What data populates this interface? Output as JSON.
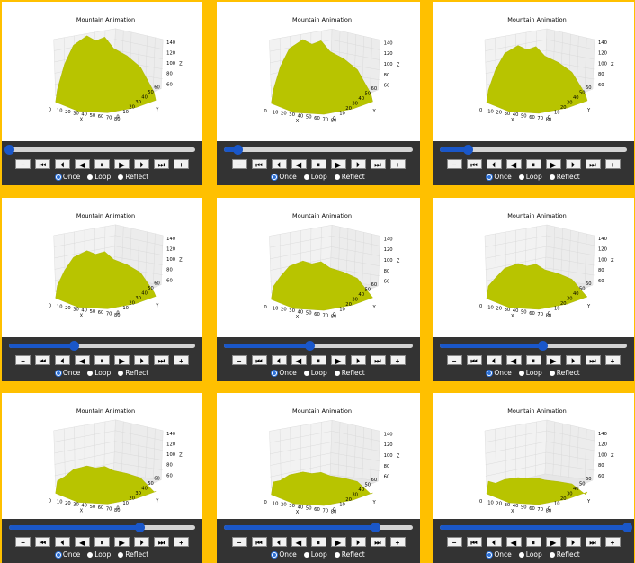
{
  "title": "Mountain Animation",
  "axes": {
    "x_label": "X",
    "y_label": "Y",
    "z_label": "Z",
    "x_ticks": [
      "0",
      "10",
      "20",
      "30",
      "40",
      "50",
      "60",
      "70",
      "80"
    ],
    "y_ticks": [
      "0",
      "10",
      "20",
      "30",
      "40",
      "50",
      "60"
    ],
    "z_ticks": [
      "60",
      "80",
      "100",
      "120",
      "140"
    ]
  },
  "buttons": [
    "−",
    "⏮",
    "⏴",
    "◀",
    "⏸",
    "▶",
    "⏵",
    "⏭",
    "+"
  ],
  "radios": {
    "options": [
      "Once",
      "Loop",
      "Reflect"
    ],
    "selected": "Once"
  },
  "colors": {
    "background": "#FFC000",
    "surface": "#B8C400",
    "control_bar": "#333333",
    "slider_fill": "#1a57c9"
  },
  "frames": [
    {
      "progress": 0.0,
      "peak": 1.0
    },
    {
      "progress": 0.07,
      "peak": 0.95
    },
    {
      "progress": 0.15,
      "peak": 0.85
    },
    {
      "progress": 0.35,
      "peak": 0.7
    },
    {
      "progress": 0.45,
      "peak": 0.55
    },
    {
      "progress": 0.55,
      "peak": 0.5
    },
    {
      "progress": 0.7,
      "peak": 0.38
    },
    {
      "progress": 0.8,
      "peak": 0.3
    },
    {
      "progress": 1.0,
      "peak": 0.2
    }
  ]
}
